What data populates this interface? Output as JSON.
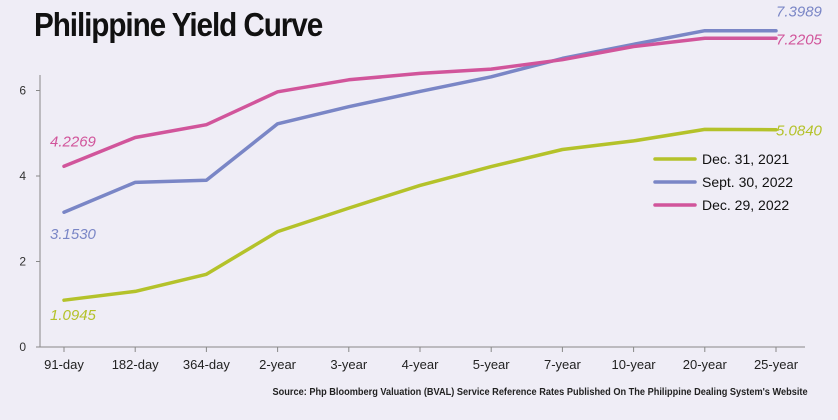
{
  "title": "Philippine Yield Curve",
  "source": "Source: Php Bloomberg Valuation (BVAL) Service Reference Rates Published On The Philippine Dealing System's Website",
  "chart_data": {
    "type": "line",
    "title": "Philippine Yield Curve",
    "xlabel": "",
    "ylabel": "",
    "categories": [
      "91-day",
      "182-day",
      "364-day",
      "2-year",
      "3-year",
      "4-year",
      "5-year",
      "7-year",
      "10-year",
      "20-year",
      "25-year"
    ],
    "yticks": [
      0,
      2,
      4,
      6
    ],
    "ylim": [
      0,
      8
    ],
    "grid": false,
    "legend_position": "right",
    "series": [
      {
        "name": "Dec. 31, 2021",
        "color": "#b4c22a",
        "values": [
          1.0945,
          1.3,
          1.7,
          2.7,
          3.25,
          3.78,
          4.22,
          4.62,
          4.82,
          5.09,
          5.084
        ],
        "first_label": "1.0945",
        "last_label": "5.0840"
      },
      {
        "name": "Sept. 30, 2022",
        "color": "#7a86c6",
        "values": [
          3.153,
          3.85,
          3.9,
          5.22,
          5.62,
          5.98,
          6.32,
          6.75,
          7.08,
          7.3989,
          7.3989
        ],
        "first_label": "3.1530",
        "last_label": "7.3989"
      },
      {
        "name": "Dec. 29, 2022",
        "color": "#d1559b",
        "values": [
          4.2269,
          4.9,
          5.2,
          5.97,
          6.25,
          6.4,
          6.5,
          6.72,
          7.03,
          7.2205,
          7.2205
        ],
        "first_label": "4.2269",
        "last_label": "7.2205"
      }
    ]
  }
}
